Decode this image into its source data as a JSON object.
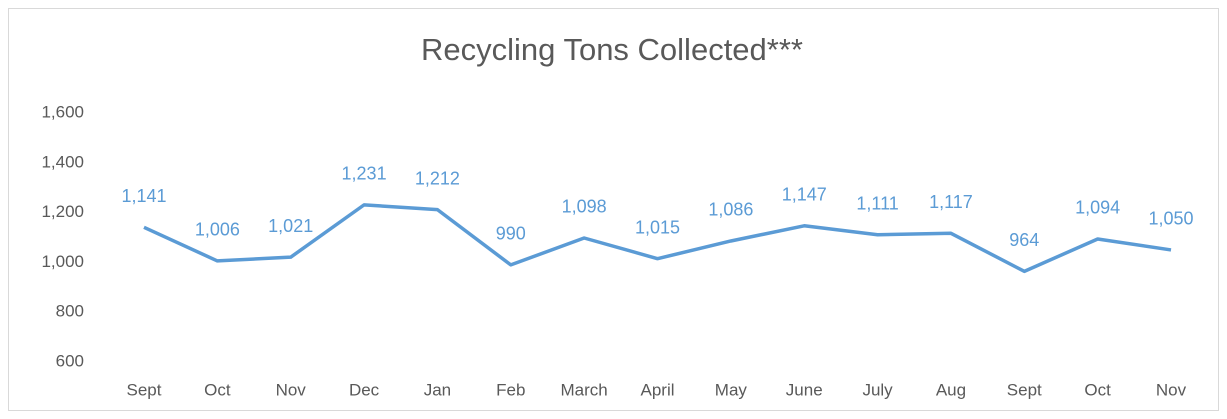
{
  "chart_data": {
    "type": "line",
    "title": "Recycling Tons Collected***",
    "categories": [
      "Sept",
      "Oct",
      "Nov",
      "Dec",
      "Jan",
      "Feb",
      "March",
      "April",
      "May",
      "June",
      "July",
      "Aug",
      "Sept",
      "Oct",
      "Nov"
    ],
    "values": [
      1141,
      1006,
      1021,
      1231,
      1212,
      990,
      1098,
      1015,
      1086,
      1147,
      1111,
      1117,
      964,
      1094,
      1050
    ],
    "value_labels": [
      "1,141",
      "1,006",
      "1,021",
      "1,231",
      "1,212",
      "990",
      "1,098",
      "1,015",
      "1,086",
      "1,147",
      "1,111",
      "1,117",
      "964",
      "1,094",
      "1,050"
    ],
    "color": "#5b9bd5",
    "ylim": [
      600,
      1600
    ],
    "yticks": [
      600,
      800,
      {
        "value": 1000,
        "label": "1,000"
      },
      {
        "value": 1200,
        "label": "1,200"
      },
      {
        "value": 1400,
        "label": "1,400"
      },
      {
        "value": 1600,
        "label": "1,600"
      }
    ],
    "grid": false
  }
}
